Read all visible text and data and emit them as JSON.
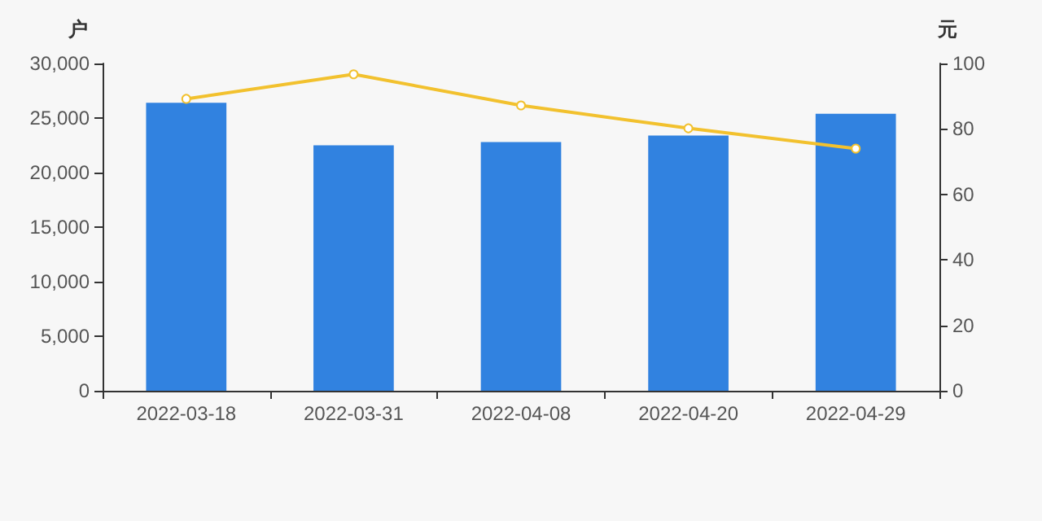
{
  "chart_data": {
    "type": "bar",
    "ylabel": "户",
    "y2label": "元",
    "categories": [
      "2022-03-18",
      "2022-03-31",
      "2022-04-08",
      "2022-04-20",
      "2022-04-29"
    ],
    "series": [
      {
        "color": "#3182e0",
        "values": [
          26400,
          22500,
          22800,
          23400,
          25400
        ]
      },
      {
        "type": "line",
        "axis": "y2",
        "color": "#f2c12e",
        "marker": "circle",
        "values": [
          89.2,
          96.7,
          87.2,
          80.2,
          74
        ]
      }
    ],
    "ylim": [
      0,
      30000
    ],
    "yticks": [
      0,
      {
        "value": 5000,
        "label": "5,000"
      },
      {
        "value": 10000,
        "label": "10,000"
      },
      {
        "value": 15000,
        "label": "15,000"
      },
      {
        "value": 20000,
        "label": "20,000"
      },
      {
        "value": 25000,
        "label": "25,000"
      },
      {
        "value": 30000,
        "label": "30,000"
      }
    ],
    "y2lim": [
      0,
      100
    ],
    "y2ticks": [
      0,
      20,
      40,
      60,
      80,
      100
    ],
    "grid": false
  }
}
